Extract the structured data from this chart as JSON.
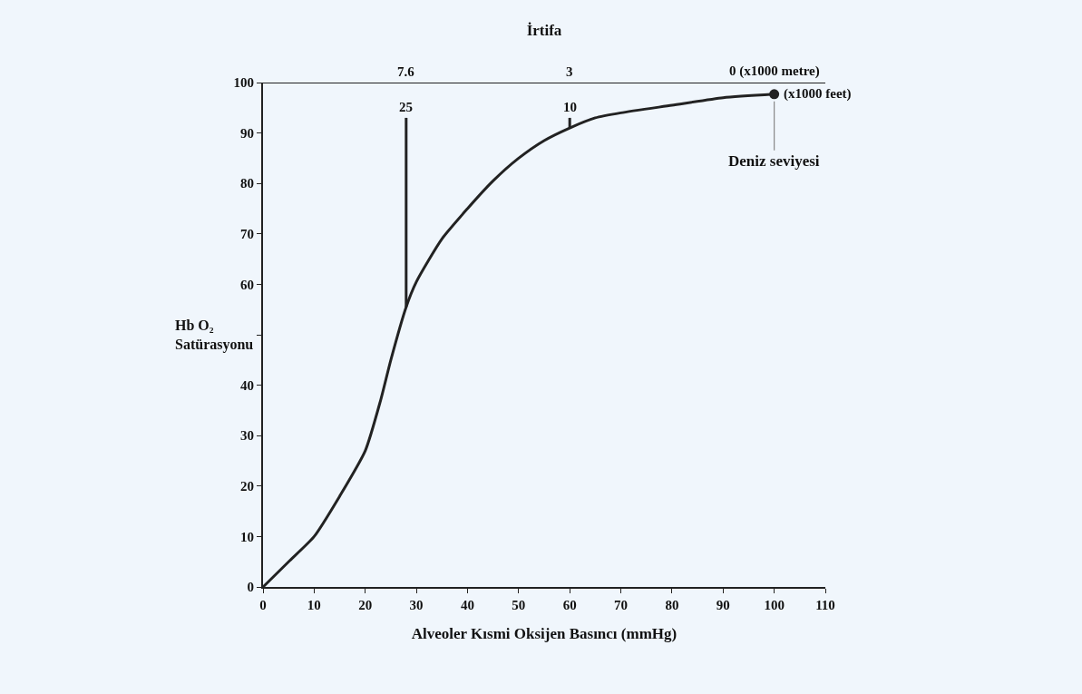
{
  "chart_data": {
    "type": "line",
    "title": "İrtifa",
    "xlabel": "Alveoler Kısmi Oksijen Basıncı (mmHg)",
    "ylabel": "Hb O₂\nSatürasyonu",
    "xlim": [
      0,
      110
    ],
    "xticks": [
      0,
      10,
      20,
      30,
      40,
      50,
      60,
      70,
      80,
      90,
      100,
      110
    ],
    "ylim": [
      0,
      100
    ],
    "yticks": [
      0,
      10,
      20,
      30,
      40,
      {
        "value": 50,
        "label": null
      },
      60,
      70,
      80,
      90,
      100
    ],
    "grid": false,
    "marker": "none",
    "line_style": "solid",
    "ref_lines": [
      {
        "axis": "y",
        "value": 100,
        "color": "#222222"
      }
    ],
    "series": [
      {
        "color": "#222222",
        "x": [
          0,
          5,
          10,
          15,
          20,
          23,
          25,
          28,
          30,
          35,
          40,
          45,
          50,
          55,
          60,
          65,
          70,
          80,
          90,
          100
        ],
        "values": [
          0,
          5,
          10,
          18,
          27,
          37,
          45,
          55.5,
          60.5,
          69,
          75,
          80.5,
          85,
          88.5,
          91,
          93,
          94,
          95.5,
          97,
          97.7
        ]
      },
      {
        "color": "#222222",
        "x": [
          28,
          28
        ],
        "values": [
          55.5,
          93
        ]
      },
      {
        "color": "#222222",
        "x": [
          60,
          60
        ],
        "values": [
          91,
          93
        ]
      },
      {
        "type": "scatter",
        "marker": "circle",
        "color": "#222222",
        "x": [
          100
        ],
        "values": [
          97.7
        ]
      }
    ],
    "annotations": [
      {
        "text": "7.6",
        "x": 28,
        "y": 100
      },
      {
        "text": "3",
        "x": 60,
        "y": 100
      },
      {
        "text": "0 (x1000 metre)",
        "x": 100,
        "y": 100
      },
      {
        "text": "25",
        "x": 28,
        "y": 93
      },
      {
        "text": "10",
        "x": 60,
        "y": 93
      },
      {
        "text": "(x1000 feet)",
        "x": 100,
        "y": 97.7
      },
      {
        "text": "Deniz seviyesi",
        "x": 100,
        "y": 97.7
      }
    ]
  }
}
